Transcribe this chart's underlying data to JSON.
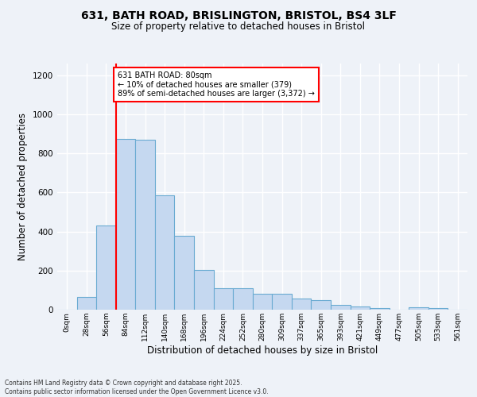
{
  "title_line1": "631, BATH ROAD, BRISLINGTON, BRISTOL, BS4 3LF",
  "title_line2": "Size of property relative to detached houses in Bristol",
  "xlabel": "Distribution of detached houses by size in Bristol",
  "ylabel": "Number of detached properties",
  "bar_values": [
    2,
    65,
    430,
    875,
    870,
    585,
    380,
    205,
    110,
    110,
    80,
    80,
    55,
    50,
    25,
    15,
    10,
    0,
    12,
    8,
    0
  ],
  "bin_labels": [
    "0sqm",
    "28sqm",
    "56sqm",
    "84sqm",
    "112sqm",
    "140sqm",
    "168sqm",
    "196sqm",
    "224sqm",
    "252sqm",
    "280sqm",
    "309sqm",
    "337sqm",
    "365sqm",
    "393sqm",
    "421sqm",
    "449sqm",
    "477sqm",
    "505sqm",
    "533sqm",
    "561sqm"
  ],
  "bar_color": "#c5d8f0",
  "bar_edge_color": "#6aabd2",
  "vline_color": "red",
  "vline_pos": 2.5,
  "annotation_text": "631 BATH ROAD: 80sqm\n← 10% of detached houses are smaller (379)\n89% of semi-detached houses are larger (3,372) →",
  "annotation_box_color": "white",
  "annotation_box_edge_color": "red",
  "ylim": [
    0,
    1260
  ],
  "yticks": [
    0,
    200,
    400,
    600,
    800,
    1000,
    1200
  ],
  "background_color": "#eef2f8",
  "grid_color": "white",
  "footnote": "Contains HM Land Registry data © Crown copyright and database right 2025.\nContains public sector information licensed under the Open Government Licence v3.0."
}
